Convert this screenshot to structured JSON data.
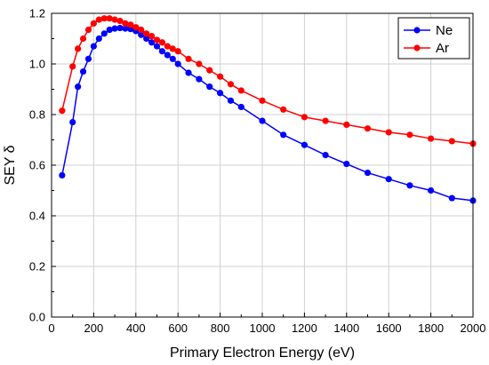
{
  "chart_data": {
    "type": "line",
    "xlabel": "Primary Electron Energy (eV)",
    "ylabel": "SEY δ",
    "xlim": [
      0,
      2000
    ],
    "ylim": [
      0,
      1.2
    ],
    "x_ticks": [
      0,
      200,
      400,
      600,
      800,
      1000,
      1200,
      1400,
      1600,
      1800,
      2000
    ],
    "y_ticks": [
      0.0,
      0.2,
      0.4,
      0.6,
      0.8,
      1.0,
      1.2
    ],
    "grid": true,
    "legend_position": "top-right",
    "series": [
      {
        "name": "Ne",
        "color": "#0000ff",
        "x": [
          50,
          100,
          125,
          150,
          175,
          200,
          225,
          250,
          275,
          300,
          325,
          350,
          375,
          400,
          425,
          450,
          475,
          500,
          525,
          550,
          575,
          600,
          650,
          700,
          750,
          800,
          850,
          900,
          1000,
          1100,
          1200,
          1300,
          1400,
          1500,
          1600,
          1700,
          1800,
          1900,
          2000
        ],
        "y": [
          0.56,
          0.77,
          0.91,
          0.97,
          1.02,
          1.07,
          1.1,
          1.12,
          1.135,
          1.14,
          1.142,
          1.14,
          1.138,
          1.13,
          1.115,
          1.1,
          1.085,
          1.07,
          1.05,
          1.035,
          1.02,
          1.0,
          0.965,
          0.94,
          0.91,
          0.885,
          0.855,
          0.83,
          0.775,
          0.72,
          0.68,
          0.64,
          0.605,
          0.57,
          0.545,
          0.52,
          0.5,
          0.47,
          0.46
        ]
      },
      {
        "name": "Ar",
        "color": "#ff0000",
        "x": [
          50,
          100,
          125,
          150,
          175,
          200,
          225,
          250,
          275,
          300,
          325,
          350,
          375,
          400,
          425,
          450,
          475,
          500,
          525,
          550,
          575,
          600,
          650,
          700,
          750,
          800,
          850,
          900,
          1000,
          1100,
          1200,
          1300,
          1400,
          1500,
          1600,
          1700,
          1800,
          1900,
          2000
        ],
        "y": [
          0.815,
          0.99,
          1.06,
          1.1,
          1.135,
          1.16,
          1.175,
          1.18,
          1.18,
          1.175,
          1.17,
          1.16,
          1.155,
          1.145,
          1.135,
          1.12,
          1.11,
          1.095,
          1.085,
          1.07,
          1.06,
          1.05,
          1.02,
          1.0,
          0.975,
          0.95,
          0.92,
          0.895,
          0.855,
          0.82,
          0.79,
          0.775,
          0.76,
          0.745,
          0.73,
          0.72,
          0.705,
          0.695,
          0.685
        ]
      }
    ]
  }
}
